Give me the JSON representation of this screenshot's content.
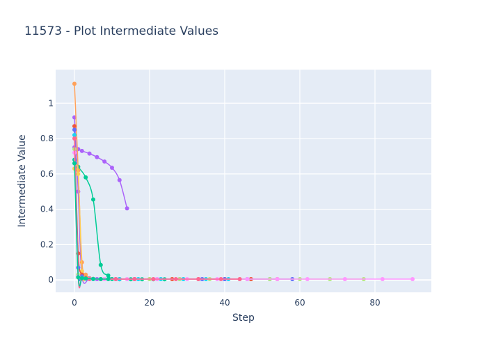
{
  "chart_data": {
    "type": "line",
    "title": "11573 - Plot Intermediate Values",
    "xlabel": "Step",
    "ylabel": "Intermediate Value",
    "xlim": [
      -5,
      95
    ],
    "ylim": [
      -0.07,
      1.19
    ],
    "x_ticks": [
      0,
      20,
      40,
      60,
      80
    ],
    "y_ticks": [
      0,
      0.2,
      0.4,
      0.6,
      0.8,
      1
    ],
    "x_tick_labels": [
      "0",
      "20",
      "40",
      "60",
      "80"
    ],
    "y_tick_labels": [
      "0",
      "0.2",
      "0.4",
      "0.6",
      "0.8",
      "1"
    ],
    "grid": true,
    "legend": "none",
    "plot_bgcolor": "#e5ecf6",
    "series": [
      {
        "color": "#ab63fa",
        "x": [
          0,
          1,
          2,
          4,
          6,
          8,
          10,
          12,
          14
        ],
        "y": [
          0.75,
          0.74,
          0.73,
          0.715,
          0.695,
          0.67,
          0.635,
          0.565,
          0.405
        ]
      },
      {
        "color": "#00cc96",
        "x": [
          0,
          1,
          3,
          5,
          7,
          9,
          10,
          12,
          15,
          18,
          21,
          24
        ],
        "y": [
          0.68,
          0.64,
          0.58,
          0.455,
          0.085,
          0.025,
          0.005,
          0.004,
          0.004,
          0.004,
          0.004,
          0.004
        ]
      },
      {
        "color": "#ab63fa",
        "x": [
          0,
          1,
          2,
          4,
          6
        ],
        "y": [
          0.92,
          0.5,
          0.02,
          0.008,
          0.005
        ]
      },
      {
        "color": "#FFA15A",
        "x": [
          0,
          1,
          2,
          3,
          4
        ],
        "y": [
          1.11,
          0.62,
          0.1,
          0.03,
          0.01
        ]
      },
      {
        "color": "#FECB52",
        "x": [
          0,
          1,
          2,
          3
        ],
        "y": [
          0.63,
          0.6,
          0.05,
          0.01
        ]
      },
      {
        "color": "#EF553B",
        "x": [
          0,
          1,
          2,
          3,
          5,
          8,
          12,
          16,
          20,
          26,
          33,
          40,
          47,
          54
        ],
        "y": [
          0.87,
          0.15,
          0.03,
          0.01,
          0.006,
          0.005,
          0.005,
          0.005,
          0.005,
          0.005,
          0.005,
          0.005,
          0.005,
          0.005
        ]
      },
      {
        "color": "#636efa",
        "x": [
          0,
          1,
          2,
          4,
          7,
          11,
          16,
          22,
          28,
          34,
          40,
          46,
          52,
          58
        ],
        "y": [
          0.85,
          0.07,
          0.02,
          0.008,
          0.005,
          0.005,
          0.005,
          0.005,
          0.005,
          0.005,
          0.005,
          0.005,
          0.005,
          0.005
        ]
      },
      {
        "color": "#19d3f3",
        "x": [
          0,
          1,
          2,
          3,
          5,
          8,
          12,
          17,
          23,
          29,
          35,
          41
        ],
        "y": [
          0.82,
          0.02,
          0.01,
          0.008,
          0.005,
          0.005,
          0.005,
          0.005,
          0.005,
          0.005,
          0.005,
          0.005
        ]
      },
      {
        "color": "#B6E880",
        "x": [
          0,
          1,
          2,
          4,
          8,
          14,
          20,
          28,
          36,
          44,
          52,
          60,
          68,
          77
        ],
        "y": [
          0.74,
          0.03,
          0.01,
          0.006,
          0.005,
          0.005,
          0.005,
          0.005,
          0.005,
          0.005,
          0.005,
          0.005,
          0.005,
          0.005
        ]
      },
      {
        "color": "#FF97FF",
        "x": [
          0,
          1,
          2,
          4,
          8,
          14,
          22,
          30,
          38,
          46,
          54,
          62,
          72,
          82,
          90
        ],
        "y": [
          0.72,
          0.02,
          0.01,
          0.006,
          0.005,
          0.005,
          0.005,
          0.005,
          0.005,
          0.005,
          0.005,
          0.005,
          0.005,
          0.005,
          0.005
        ]
      },
      {
        "color": "#FF6692",
        "x": [
          0,
          1,
          2,
          4,
          7,
          11,
          16,
          21,
          27,
          33,
          39,
          44
        ],
        "y": [
          0.8,
          0.015,
          0.008,
          0.005,
          0.005,
          0.005,
          0.005,
          0.005,
          0.005,
          0.005,
          0.005,
          0.005
        ]
      },
      {
        "color": "#00cc96",
        "x": [
          0,
          1,
          2,
          3,
          5,
          7,
          9
        ],
        "y": [
          0.66,
          0.015,
          0.01,
          0.008,
          0.006,
          0.005,
          0.005
        ]
      }
    ]
  }
}
